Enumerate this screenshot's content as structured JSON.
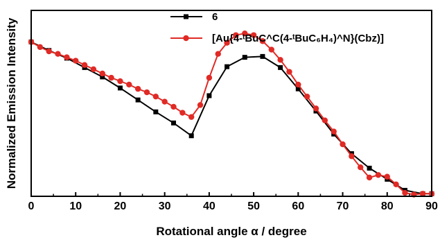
{
  "chart_data": {
    "type": "line",
    "xlabel": "Rotational angle α / degree",
    "ylabel": "Normalized Emission Intensity",
    "xlim": [
      0,
      90
    ],
    "ylim": [
      0,
      1.09
    ],
    "x_ticks": [
      0,
      10,
      20,
      30,
      40,
      50,
      60,
      70,
      80,
      90
    ],
    "x_tick_labels": [
      "0",
      "10",
      "20",
      "30",
      "40",
      "50",
      "60",
      "70",
      "80",
      "90"
    ],
    "grid": false,
    "legend_position": "top-center",
    "series": [
      {
        "name": "6",
        "color": "#000000",
        "marker": "square",
        "x": [
          0,
          4,
          8,
          12,
          16,
          20,
          24,
          28,
          32,
          36,
          40,
          44,
          48,
          52,
          56,
          60,
          64,
          68,
          72,
          76,
          80,
          84,
          88,
          90
        ],
        "y": [
          0.905,
          0.855,
          0.81,
          0.755,
          0.7,
          0.635,
          0.565,
          0.495,
          0.43,
          0.355,
          0.59,
          0.76,
          0.815,
          0.82,
          0.755,
          0.63,
          0.5,
          0.365,
          0.25,
          0.165,
          0.1,
          0.035,
          0.015,
          0.015
        ]
      },
      {
        "name": "[Au{4-ᵗBuC^C(4-ᵗBuC₆H₄)^N}(Cbz)]",
        "color": "#e02a25",
        "marker": "circle",
        "x": [
          0,
          2,
          4,
          6,
          8,
          10,
          12,
          14,
          16,
          18,
          20,
          22,
          24,
          26,
          28,
          30,
          32,
          34,
          36,
          38,
          40,
          42,
          44,
          46,
          48,
          50,
          52,
          54,
          56,
          58,
          60,
          62,
          64,
          66,
          68,
          70,
          72,
          74,
          76,
          78,
          80,
          82,
          84,
          86,
          88,
          90
        ],
        "y": [
          0.905,
          0.875,
          0.85,
          0.835,
          0.815,
          0.795,
          0.77,
          0.745,
          0.72,
          0.695,
          0.675,
          0.655,
          0.63,
          0.61,
          0.585,
          0.555,
          0.525,
          0.49,
          0.465,
          0.535,
          0.695,
          0.835,
          0.9,
          0.945,
          0.955,
          0.945,
          0.91,
          0.86,
          0.8,
          0.73,
          0.655,
          0.585,
          0.515,
          0.445,
          0.38,
          0.305,
          0.235,
          0.17,
          0.11,
          0.125,
          0.115,
          0.07,
          0.02,
          0.01,
          0.015,
          0.015
        ]
      }
    ]
  }
}
